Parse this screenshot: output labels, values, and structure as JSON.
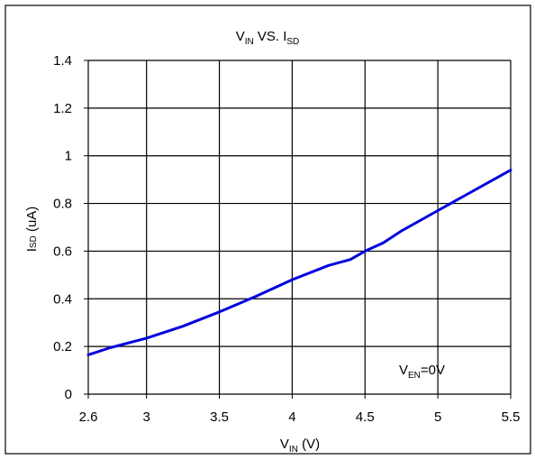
{
  "chart_data": {
    "type": "line",
    "title": {
      "main": "V",
      "sub1": "IN",
      "mid": " VS. I",
      "sub2": "SD"
    },
    "xlabel": {
      "main": "V",
      "sub": "IN",
      "rest": " (V)"
    },
    "ylabel": {
      "main": "I",
      "sub": "SD",
      "rest": " (uA)"
    },
    "xlim": [
      2.6,
      5.5
    ],
    "ylim": [
      0,
      1.4
    ],
    "x_ticks": [
      2.6,
      3,
      3.5,
      4,
      4.5,
      5,
      5.5
    ],
    "x_tick_labels": [
      "2.6",
      "3",
      "3.5",
      "4",
      "4.5",
      "5",
      "5.5"
    ],
    "y_ticks": [
      0,
      0.2,
      0.4,
      0.6,
      0.8,
      1,
      1.2,
      1.4
    ],
    "y_tick_labels": [
      "0",
      "0.2",
      "0.4",
      "0.6",
      "0.8",
      "1",
      "1.2",
      "1.4"
    ],
    "grid": true,
    "annotation": {
      "main": "V",
      "sub": "EN",
      "rest": "=0V"
    },
    "series": [
      {
        "color": "#0000dd",
        "x": [
          2.6,
          2.75,
          3.0,
          3.25,
          3.5,
          3.75,
          4.0,
          4.25,
          4.4,
          4.5,
          4.625,
          4.75,
          5.0,
          5.25,
          5.5
        ],
        "y": [
          0.165,
          0.195,
          0.235,
          0.285,
          0.345,
          0.41,
          0.48,
          0.54,
          0.565,
          0.6,
          0.635,
          0.685,
          0.77,
          0.855,
          0.94
        ]
      }
    ]
  }
}
